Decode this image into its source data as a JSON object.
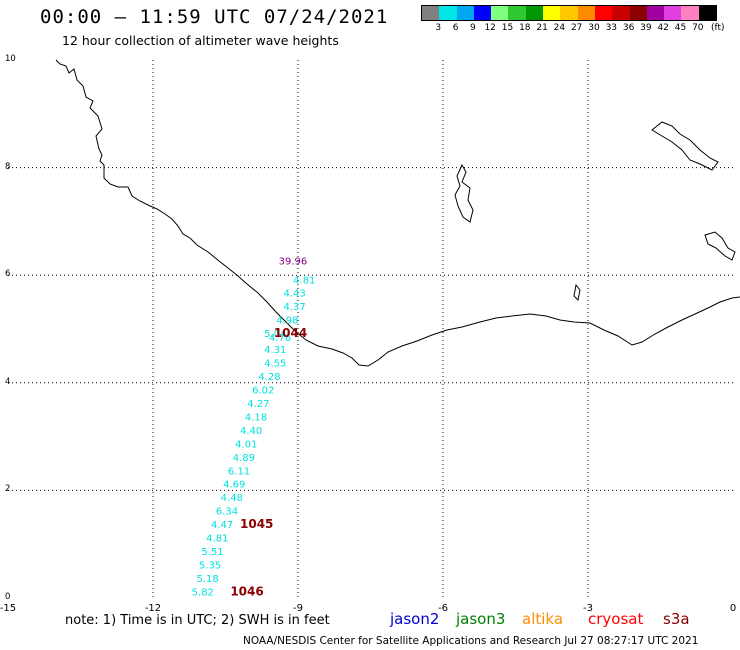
{
  "title": "00:00 – 11:59 UTC 07/24/2021",
  "subtitle": "12 hour collection of altimeter wave heights",
  "legend": {
    "colors": [
      "#808080",
      "#00e5e5",
      "#00a8f0",
      "#0000ff",
      "#80ff80",
      "#30c830",
      "#009800",
      "#ffff00",
      "#ffc800",
      "#ff8c00",
      "#ff0000",
      "#c80000",
      "#8b0000",
      "#a000a0",
      "#e040e0",
      "#ff80c0",
      "#000000"
    ],
    "ticks": [
      "3",
      "6",
      "9",
      "12",
      "15",
      "18",
      "21",
      "24",
      "27",
      "30",
      "33",
      "36",
      "39",
      "42",
      "45",
      "70"
    ],
    "unit": "(ft)"
  },
  "axes": {
    "x_ticks": [
      "-15",
      "-12",
      "-9",
      "-6",
      "-3",
      "0"
    ],
    "y_ticks": [
      "0",
      "2",
      "4",
      "6",
      "8",
      "10"
    ],
    "xlim": [
      -15,
      0
    ],
    "ylim": [
      0,
      10
    ]
  },
  "observations": [
    {
      "lon": -9.4,
      "lat": 6.2,
      "value": "39.96",
      "color": "#8b008b"
    },
    {
      "lon": -9.1,
      "lat": 5.85,
      "value": "4.81",
      "color": "#00e1e1"
    },
    {
      "lon": -9.3,
      "lat": 5.6,
      "value": "4.43",
      "color": "#00e1e1"
    },
    {
      "lon": -9.3,
      "lat": 5.35,
      "value": "4.37",
      "color": "#00e1e1"
    },
    {
      "lon": -9.45,
      "lat": 5.1,
      "value": "4.98",
      "color": "#00e1e1"
    },
    {
      "lon": -9.7,
      "lat": 4.85,
      "value": "5.04",
      "color": "#00e1e1"
    },
    {
      "lon": -9.6,
      "lat": 4.78,
      "value": "4.76",
      "color": "#00e1e1"
    },
    {
      "lon": -9.7,
      "lat": 4.55,
      "value": "4.31",
      "color": "#00e1e1"
    },
    {
      "lon": -9.7,
      "lat": 4.3,
      "value": "4.55",
      "color": "#00e1e1"
    },
    {
      "lon": -9.82,
      "lat": 4.05,
      "value": "4.28",
      "color": "#00e1e1"
    },
    {
      "lon": -9.95,
      "lat": 3.8,
      "value": "6.02",
      "color": "#00e1e1"
    },
    {
      "lon": -10.05,
      "lat": 3.55,
      "value": "4.27",
      "color": "#00e1e1"
    },
    {
      "lon": -10.1,
      "lat": 3.3,
      "value": "4.18",
      "color": "#00e1e1"
    },
    {
      "lon": -10.2,
      "lat": 3.05,
      "value": "4.40",
      "color": "#00e1e1"
    },
    {
      "lon": -10.3,
      "lat": 2.8,
      "value": "4.01",
      "color": "#00e1e1"
    },
    {
      "lon": -10.35,
      "lat": 2.55,
      "value": "4.89",
      "color": "#00e1e1"
    },
    {
      "lon": -10.45,
      "lat": 2.3,
      "value": "6.11",
      "color": "#00e1e1"
    },
    {
      "lon": -10.55,
      "lat": 2.05,
      "value": "4.69",
      "color": "#00e1e1"
    },
    {
      "lon": -10.6,
      "lat": 1.8,
      "value": "4.48",
      "color": "#00e1e1"
    },
    {
      "lon": -10.7,
      "lat": 1.55,
      "value": "6.34",
      "color": "#00e1e1"
    },
    {
      "lon": -10.8,
      "lat": 1.3,
      "value": "4.47",
      "color": "#00e1e1"
    },
    {
      "lon": -10.9,
      "lat": 1.05,
      "value": "4.81",
      "color": "#00e1e1"
    },
    {
      "lon": -11.0,
      "lat": 0.8,
      "value": "5.51",
      "color": "#00e1e1"
    },
    {
      "lon": -11.05,
      "lat": 0.55,
      "value": "5.35",
      "color": "#00e1e1"
    },
    {
      "lon": -11.1,
      "lat": 0.3,
      "value": "5.18",
      "color": "#00e1e1"
    },
    {
      "lon": -11.2,
      "lat": 0.05,
      "value": "5.82",
      "color": "#00e1e1"
    }
  ],
  "markers": [
    {
      "lon": -9.5,
      "lat": 4.85,
      "label": "1044"
    },
    {
      "lon": -10.2,
      "lat": 1.3,
      "label": "1045"
    },
    {
      "lon": -10.4,
      "lat": 0.05,
      "label": "1046"
    }
  ],
  "note": "note: 1) Time is in UTC; 2) SWH is in feet",
  "satellites": [
    {
      "name": "jason2",
      "color": "#0000cd"
    },
    {
      "name": "jason3",
      "color": "#008000"
    },
    {
      "name": "altika",
      "color": "#ff8c00"
    },
    {
      "name": "cryosat",
      "color": "#ff0000"
    },
    {
      "name": "s3a",
      "color": "#8b0000"
    }
  ],
  "credit": "NOAA/NESDIS Center for Satellite Applications and Research    Jul 27 08:27:17 UTC 2021"
}
